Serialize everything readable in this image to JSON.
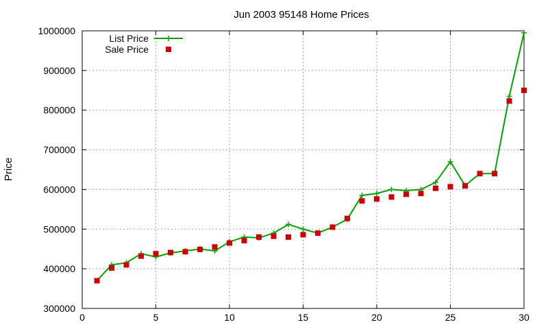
{
  "chart_data": {
    "type": "line",
    "title": "Jun 2003 95148 Home Prices",
    "xlabel": "",
    "ylabel": "Price",
    "xlim": [
      0,
      30
    ],
    "ylim": [
      300000,
      1000000
    ],
    "xticks": [
      0,
      5,
      10,
      15,
      20,
      25,
      30
    ],
    "yticks": [
      300000,
      400000,
      500000,
      600000,
      700000,
      800000,
      900000,
      1000000
    ],
    "grid": true,
    "legend_position": "top-left",
    "series": [
      {
        "name": "List Price",
        "style": "lines+crosses",
        "color": "#00a000",
        "x": [
          1,
          2,
          3,
          4,
          5,
          6,
          7,
          8,
          9,
          10,
          11,
          12,
          13,
          14,
          15,
          16,
          17,
          18,
          19,
          20,
          21,
          22,
          23,
          24,
          25,
          26,
          27,
          28,
          29,
          30
        ],
        "values": [
          370000,
          410000,
          415000,
          438000,
          430000,
          440000,
          445000,
          450000,
          445000,
          468000,
          480000,
          478000,
          490000,
          512000,
          500000,
          490000,
          505000,
          525000,
          585000,
          590000,
          600000,
          597000,
          600000,
          618000,
          670000,
          610000,
          640000,
          640000,
          835000,
          995000
        ]
      },
      {
        "name": "Sale Price",
        "style": "points",
        "color": "#cc0000",
        "x": [
          1,
          2,
          3,
          4,
          5,
          6,
          7,
          8,
          9,
          10,
          11,
          12,
          13,
          14,
          15,
          16,
          17,
          18,
          19,
          20,
          21,
          22,
          23,
          24,
          25,
          26,
          27,
          28,
          29,
          30
        ],
        "values": [
          370000,
          402000,
          410000,
          432000,
          438000,
          441000,
          443000,
          449000,
          455000,
          465000,
          471000,
          480000,
          482000,
          480000,
          486000,
          490000,
          505000,
          527000,
          571000,
          576000,
          581000,
          588000,
          590000,
          603000,
          607000,
          609000,
          640000,
          640000,
          823000,
          850000
        ]
      }
    ]
  }
}
